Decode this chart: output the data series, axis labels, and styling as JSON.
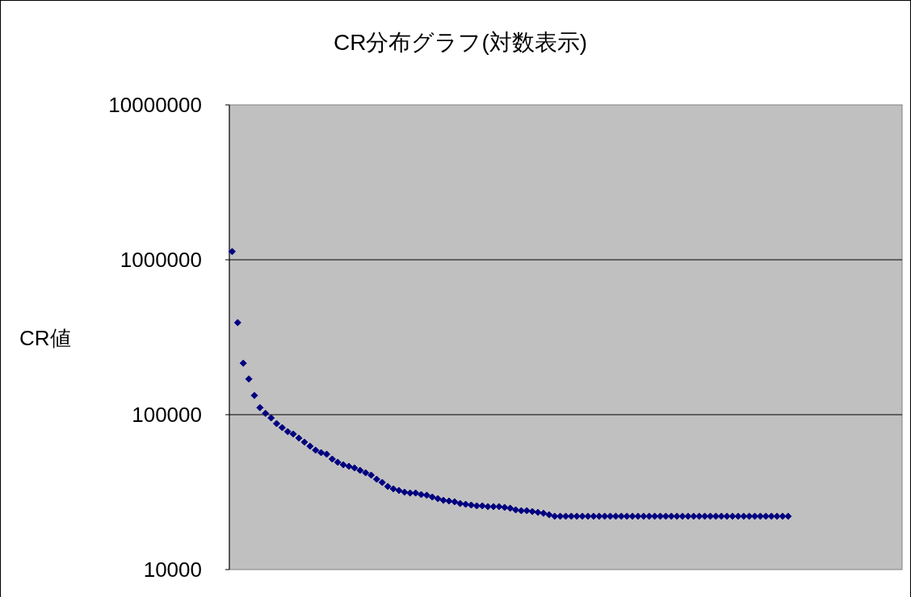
{
  "chart_data": {
    "type": "scatter",
    "title": "CR分布グラフ(対数表示)",
    "ylabel": "CR値",
    "log": true,
    "grid": "y",
    "marker": "diamond",
    "ylim": [
      10000,
      10000000
    ],
    "yticks": [
      10000,
      100000,
      1000000,
      10000000
    ],
    "categories": [
      null,
      null,
      null,
      null,
      null,
      null,
      null,
      null,
      null,
      null,
      null,
      null,
      null,
      null,
      null,
      null,
      null,
      null,
      null,
      null,
      null,
      null,
      null,
      null,
      null,
      null,
      null,
      null,
      null,
      null,
      null,
      null,
      null,
      null,
      null,
      null,
      null,
      null,
      null,
      null,
      null,
      null,
      null,
      null,
      null,
      null,
      null,
      null,
      null,
      null,
      null,
      null,
      null,
      null,
      null,
      null,
      null,
      null,
      null,
      null,
      null,
      null,
      null,
      null,
      null,
      null,
      null,
      null,
      null,
      null,
      null,
      null,
      null,
      null,
      null,
      null,
      null,
      null,
      null,
      null,
      null,
      null,
      null,
      null,
      null,
      null,
      null,
      null,
      null,
      null,
      null,
      null,
      null,
      null,
      null,
      null,
      null,
      null,
      null,
      null,
      null,
      null,
      null,
      null,
      null,
      null,
      null,
      null,
      null,
      null,
      null,
      null,
      null,
      null,
      null,
      null,
      null,
      null,
      null,
      null,
      null
    ],
    "series": [
      {
        "color": "#000080",
        "values": [
          1130000,
          393000,
          215000,
          170000,
          133000,
          111000,
          102000,
          95300,
          87600,
          82500,
          77700,
          75000,
          70600,
          66500,
          62600,
          59000,
          56900,
          55600,
          51700,
          49300,
          47500,
          46400,
          45300,
          43700,
          42200,
          40700,
          38300,
          36500,
          34400,
          33200,
          32400,
          31600,
          31200,
          31200,
          30500,
          30200,
          29400,
          28700,
          28000,
          27700,
          27400,
          26700,
          26400,
          26100,
          25800,
          25800,
          25500,
          25500,
          25500,
          25200,
          24900,
          24300,
          24000,
          24000,
          23700,
          23400,
          23100,
          22600,
          22100,
          22100,
          22100,
          22100,
          22100,
          22100,
          22100,
          22100,
          22100,
          22100,
          22100,
          22100,
          22100,
          22100,
          22100,
          22100,
          22100,
          22100,
          22100,
          22100,
          22100,
          22100,
          22100,
          22100,
          22100,
          22100,
          22100,
          22100,
          22100,
          22100,
          22100,
          22100,
          22100,
          22100,
          22100,
          22100,
          22100,
          22100,
          22100,
          22100,
          22100,
          22100,
          22100,
          null,
          null,
          null,
          null,
          null,
          null,
          null,
          null,
          null,
          null,
          null,
          null,
          null,
          null,
          null,
          null,
          null,
          null,
          null,
          null
        ]
      }
    ]
  }
}
